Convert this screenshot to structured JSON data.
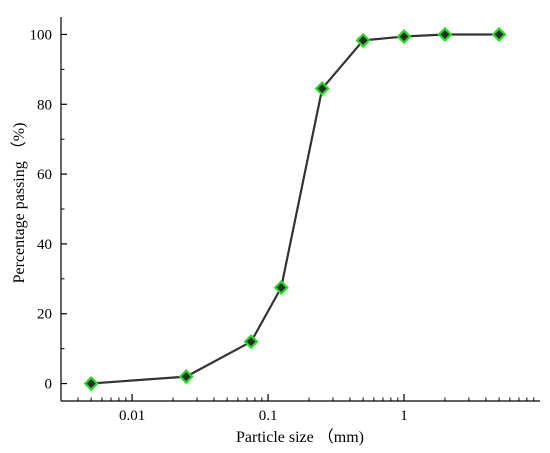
{
  "chart_data": {
    "type": "line",
    "title": "",
    "xlabel": "Particle size （mm)",
    "ylabel": "Percentage passing （%)",
    "x_scale": "log",
    "xlim": [
      0.003,
      10
    ],
    "ylim": [
      -5,
      105
    ],
    "x_ticks": [
      0.01,
      0.1,
      1
    ],
    "x_tick_labels": [
      "0.01",
      "0.1",
      "1"
    ],
    "y_ticks": [
      0,
      20,
      40,
      60,
      80,
      100
    ],
    "y_tick_labels": [
      "0",
      "20",
      "40",
      "60",
      "80",
      "100"
    ],
    "grid": false,
    "legend": "none",
    "series": [
      {
        "x": [
          0.005,
          0.025,
          0.075,
          0.125,
          0.25,
          0.5,
          1,
          2,
          5
        ],
        "y": [
          0,
          2,
          12,
          27.5,
          84.5,
          98.3,
          99.4,
          100,
          100
        ],
        "line_color": "#333333",
        "marker": "diamond",
        "marker_fill": "#2b2b2b",
        "marker_edge": "#22dd22"
      }
    ]
  }
}
